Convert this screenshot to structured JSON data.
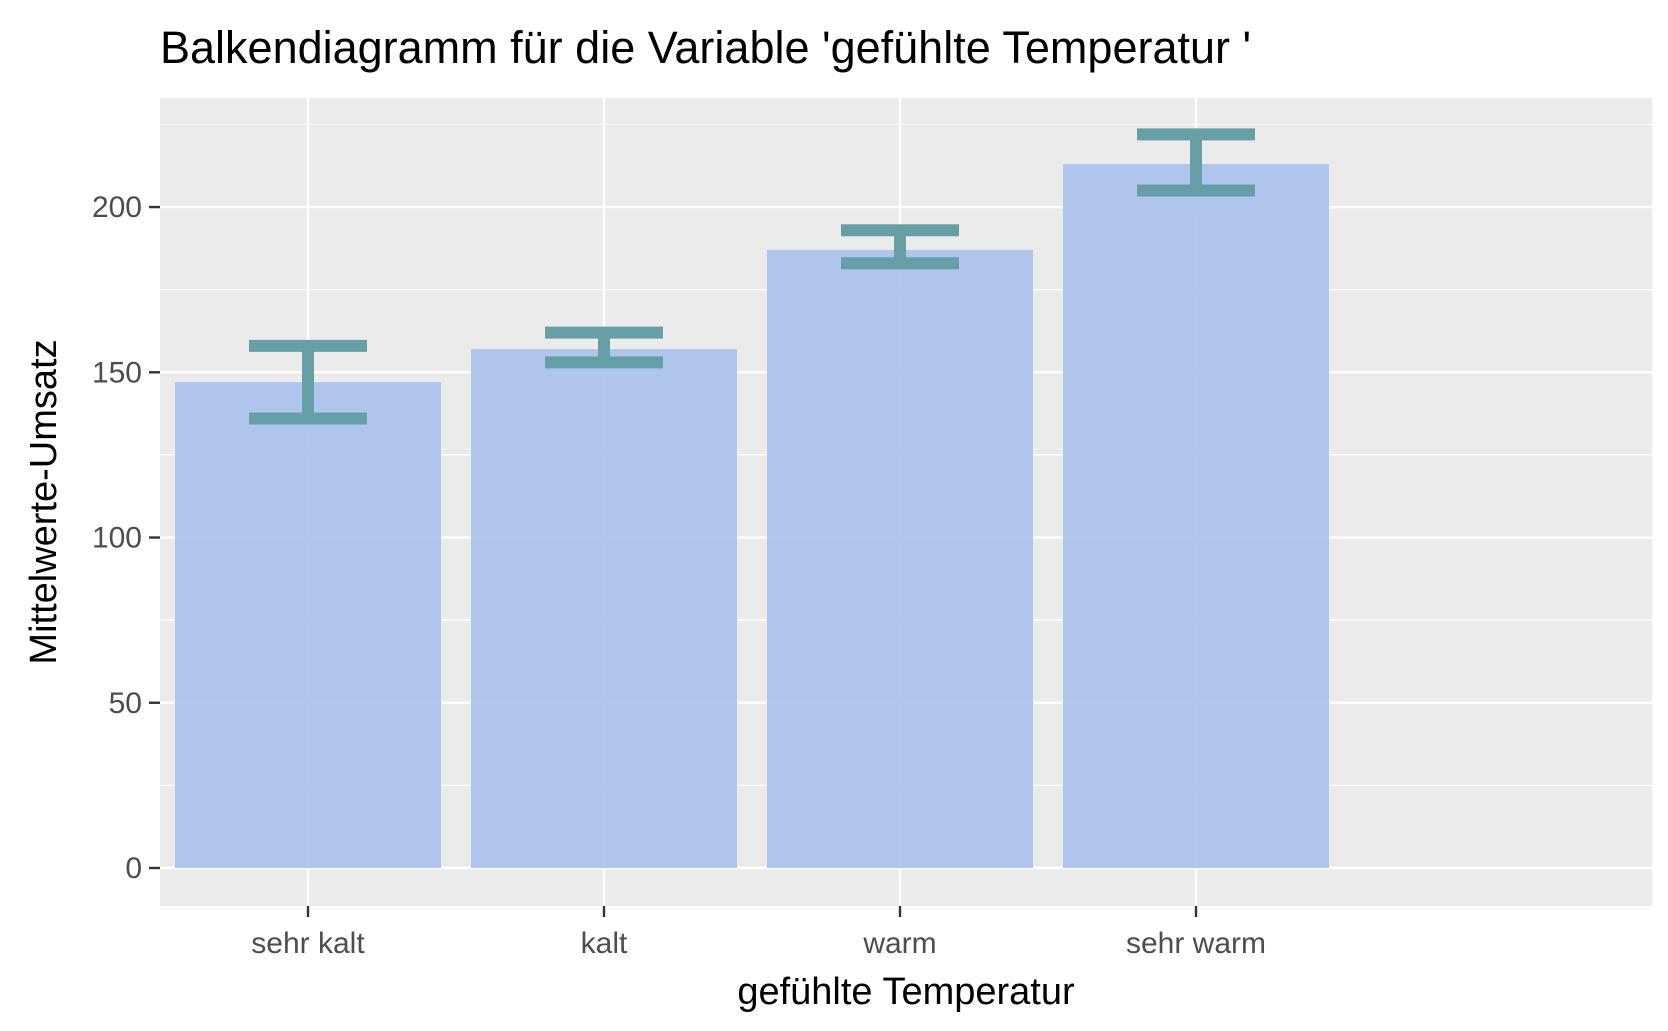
{
  "chart_data": {
    "type": "bar",
    "title": "Balkendiagramm für die Variable 'gefühlte Temperatur '",
    "xlabel": "gefühlte Temperatur",
    "ylabel": "Mittelwerte-Umsatz",
    "categories": [
      "sehr kalt",
      "kalt",
      "warm",
      "sehr warm"
    ],
    "values": [
      147,
      157,
      187,
      213
    ],
    "error_low": [
      136,
      153,
      183,
      205
    ],
    "error_high": [
      158,
      162,
      193,
      222
    ],
    "ylim": [
      -11.5,
      233
    ],
    "yticks": [
      0,
      50,
      100,
      150,
      200
    ],
    "ytick_labels": [
      "0",
      "50",
      "100",
      "150",
      "200"
    ],
    "grid": true,
    "legend": "none",
    "colors": {
      "bar": "#a9c1ee",
      "errorbar": "#669fa6",
      "panel": "#ebebeb",
      "gridline": "#ffffff"
    }
  }
}
